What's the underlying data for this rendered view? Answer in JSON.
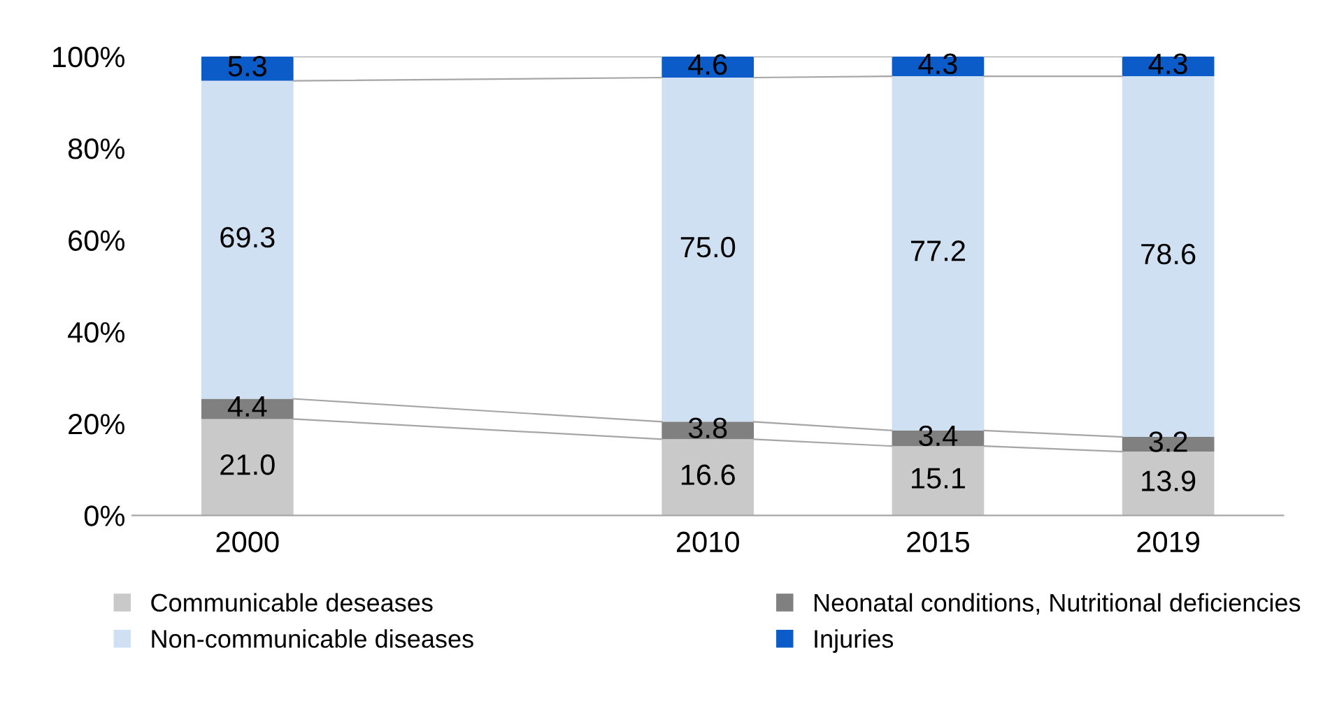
{
  "chart_data": {
    "type": "bar",
    "stacked": true,
    "categories": [
      "2000",
      null,
      "2010",
      "2015",
      "2019"
    ],
    "series": [
      {
        "name": "Communicable deseases",
        "color": "#c9c9c9",
        "values": [
          21.0,
          null,
          16.6,
          15.1,
          13.9
        ],
        "value_labels": [
          "21.0",
          null,
          "16.6",
          "15.1",
          "13.9"
        ]
      },
      {
        "name": "Neonatal conditions, Nutritional deficiencies",
        "color": "#808080",
        "values": [
          4.4,
          null,
          3.8,
          3.4,
          3.2
        ],
        "value_labels": [
          "4.4",
          null,
          "3.8",
          "3.4",
          "3.2"
        ]
      },
      {
        "name": "Non-communicable diseases",
        "color": "#cfe0f2",
        "values": [
          69.3,
          null,
          75.0,
          77.2,
          78.6
        ],
        "value_labels": [
          "69.3",
          null,
          "75.0",
          "77.2",
          "78.6"
        ]
      },
      {
        "name": "Injuries",
        "color": "#0b5cc8",
        "values": [
          5.3,
          null,
          4.6,
          4.3,
          4.3
        ],
        "value_labels": [
          "5.3",
          null,
          "4.6",
          "4.3",
          "4.3"
        ]
      }
    ],
    "ylim": [
      0,
      100
    ],
    "yticks": [
      {
        "value": 0,
        "label": "0%"
      },
      {
        "value": 20,
        "label": "20%"
      },
      {
        "value": 40,
        "label": "40%"
      },
      {
        "value": 60,
        "label": "60%"
      },
      {
        "value": 80,
        "label": "80%"
      },
      {
        "value": 100,
        "label": "100%"
      }
    ],
    "grid": false,
    "legend": "bottom"
  }
}
